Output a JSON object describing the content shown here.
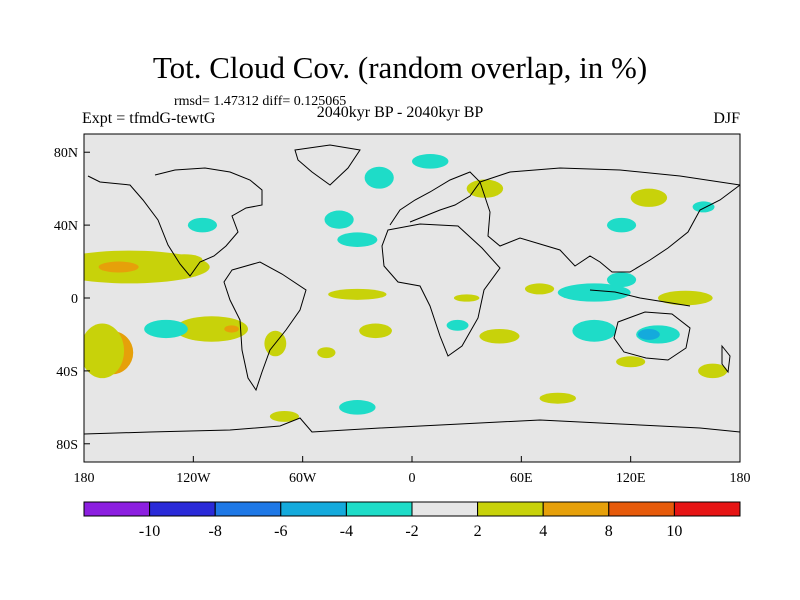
{
  "chart_data": {
    "type": "heatmap",
    "title": "Tot. Cloud Cov. (random overlap, in %)",
    "stats_label": "rmsd= 1.47312 diff= 0.125065",
    "experiment_label": "Expt = tfmdG-tewtG",
    "period_label": "2040kyr BP - 2040kyr BP",
    "season": "DJF",
    "xlim": [
      -180,
      180
    ],
    "ylim": [
      -90,
      90
    ],
    "x_ticks": [
      {
        "value": -180,
        "label": "180"
      },
      {
        "value": -120,
        "label": "120W"
      },
      {
        "value": -60,
        "label": "60W"
      },
      {
        "value": 0,
        "label": "0"
      },
      {
        "value": 60,
        "label": "60E"
      },
      {
        "value": 120,
        "label": "120E"
      },
      {
        "value": 180,
        "label": "180"
      }
    ],
    "y_ticks": [
      {
        "value": 80,
        "label": "80N"
      },
      {
        "value": 40,
        "label": "40N"
      },
      {
        "value": 0,
        "label": "0"
      },
      {
        "value": -40,
        "label": "40S"
      },
      {
        "value": -80,
        "label": "80S"
      }
    ],
    "colorbar": {
      "colors": [
        "#8c1fe0",
        "#2a2ad8",
        "#1e78e6",
        "#14aadc",
        "#1edcc8",
        "#e6e6e6",
        "#c8d20a",
        "#e6a00a",
        "#e65a0a",
        "#e61414"
      ],
      "tick_labels": [
        "-10",
        "-8",
        "-6",
        "-4",
        "-2",
        "2",
        "4",
        "8",
        "10"
      ]
    },
    "anomaly_regions": [
      {
        "name": "subtropical-north-pacific",
        "lon": -155,
        "lat": 17,
        "dlon": 44,
        "dlat": 9,
        "level": 6
      },
      {
        "name": "subtropical-north-pacific-core",
        "lon": -161,
        "lat": 17,
        "dlon": 11,
        "dlat": 3,
        "level": 7
      },
      {
        "name": "hawaii-west",
        "lon": -125,
        "lat": 21,
        "dlon": 10,
        "dlat": 3,
        "level": 6
      },
      {
        "name": "south-pacific-east",
        "lon": -165,
        "lat": -30,
        "dlon": 12,
        "dlat": 12,
        "level": 7
      },
      {
        "name": "south-pacific-east-rim",
        "lon": -170,
        "lat": -29,
        "dlon": 12,
        "dlat": 15,
        "level": 6
      },
      {
        "name": "south-pacific-central",
        "lon": -110,
        "lat": -17,
        "dlon": 20,
        "dlat": 7,
        "level": 6
      },
      {
        "name": "south-pacific-central-core",
        "lon": -99,
        "lat": -17,
        "dlon": 4,
        "dlat": 2,
        "level": 7
      },
      {
        "name": "south-pacific-negative",
        "lon": -135,
        "lat": -17,
        "dlon": 12,
        "dlat": 5,
        "level": 4
      },
      {
        "name": "chile-coast",
        "lon": -75,
        "lat": -25,
        "dlon": 6,
        "dlat": 7,
        "level": 6
      },
      {
        "name": "south-atlantic-patch",
        "lon": -47,
        "lat": -30,
        "dlon": 5,
        "dlat": 3,
        "level": 6
      },
      {
        "name": "north-pacific-east",
        "lon": -115,
        "lat": 40,
        "dlon": 8,
        "dlat": 4,
        "level": 4
      },
      {
        "name": "north-atlantic-west",
        "lon": -30,
        "lat": 32,
        "dlon": 11,
        "dlat": 4,
        "level": 4
      },
      {
        "name": "north-atlantic",
        "lon": -40,
        "lat": 43,
        "dlon": 8,
        "dlat": 5,
        "level": 4
      },
      {
        "name": "greenland-east",
        "lon": -18,
        "lat": 66,
        "dlon": 8,
        "dlat": 6,
        "level": 4
      },
      {
        "name": "atlantic-itcz",
        "lon": -30,
        "lat": 2,
        "dlon": 16,
        "dlat": 3,
        "level": 6
      },
      {
        "name": "south-atlantic-central",
        "lon": -20,
        "lat": -18,
        "dlon": 9,
        "dlat": 4,
        "level": 6
      },
      {
        "name": "gulf-of-guinea",
        "lon": 30,
        "lat": 0,
        "dlon": 7,
        "dlat": 2,
        "level": 6
      },
      {
        "name": "indian-ocean-south",
        "lon": 48,
        "lat": -21,
        "dlon": 11,
        "dlat": 4,
        "level": 6
      },
      {
        "name": "southern-africa",
        "lon": 25,
        "lat": -15,
        "dlon": 6,
        "dlat": 3,
        "level": 4
      },
      {
        "name": "indian-ocean-east",
        "lon": 100,
        "lat": 3,
        "dlon": 20,
        "dlat": 5,
        "level": 4
      },
      {
        "name": "south-china-sea",
        "lon": 115,
        "lat": 10,
        "dlon": 8,
        "dlat": 4,
        "level": 4
      },
      {
        "name": "indian-ocean-southeast",
        "lon": 100,
        "lat": -18,
        "dlon": 12,
        "dlat": 6,
        "level": 4
      },
      {
        "name": "australia-north",
        "lon": 135,
        "lat": -20,
        "dlon": 12,
        "dlat": 5,
        "level": 4
      },
      {
        "name": "australia-core",
        "lon": 130,
        "lat": -20,
        "dlon": 6,
        "dlat": 3,
        "level": 3
      },
      {
        "name": "australia-south",
        "lon": 120,
        "lat": -35,
        "dlon": 8,
        "dlat": 3,
        "level": 6
      },
      {
        "name": "arabian-sea",
        "lon": 70,
        "lat": 5,
        "dlon": 8,
        "dlat": 3,
        "level": 6
      },
      {
        "name": "western-pacific",
        "lon": 150,
        "lat": 0,
        "dlon": 15,
        "dlat": 4,
        "level": 6
      },
      {
        "name": "pacific-northwest",
        "lon": 160,
        "lat": 50,
        "dlon": 6,
        "dlat": 3,
        "level": 4
      },
      {
        "name": "siberia",
        "lon": 130,
        "lat": 55,
        "dlon": 10,
        "dlat": 5,
        "level": 6
      },
      {
        "name": "east-asia",
        "lon": 115,
        "lat": 40,
        "dlon": 8,
        "dlat": 4,
        "level": 4
      },
      {
        "name": "europe-east",
        "lon": 40,
        "lat": 60,
        "dlon": 10,
        "dlat": 5,
        "level": 6
      },
      {
        "name": "arctic-atlantic",
        "lon": 10,
        "lat": 75,
        "dlon": 10,
        "dlat": 4,
        "level": 4
      },
      {
        "name": "southern-ocean-atlantic",
        "lon": -30,
        "lat": -60,
        "dlon": 10,
        "dlat": 4,
        "level": 4
      },
      {
        "name": "southern-ocean-indian",
        "lon": 80,
        "lat": -55,
        "dlon": 10,
        "dlat": 3,
        "level": 6
      },
      {
        "name": "antarctic-peninsula",
        "lon": -70,
        "lat": -65,
        "dlon": 8,
        "dlat": 3,
        "level": 6
      },
      {
        "name": "tasman-sea",
        "lon": 165,
        "lat": -40,
        "dlon": 8,
        "dlat": 4,
        "level": 6
      }
    ]
  }
}
